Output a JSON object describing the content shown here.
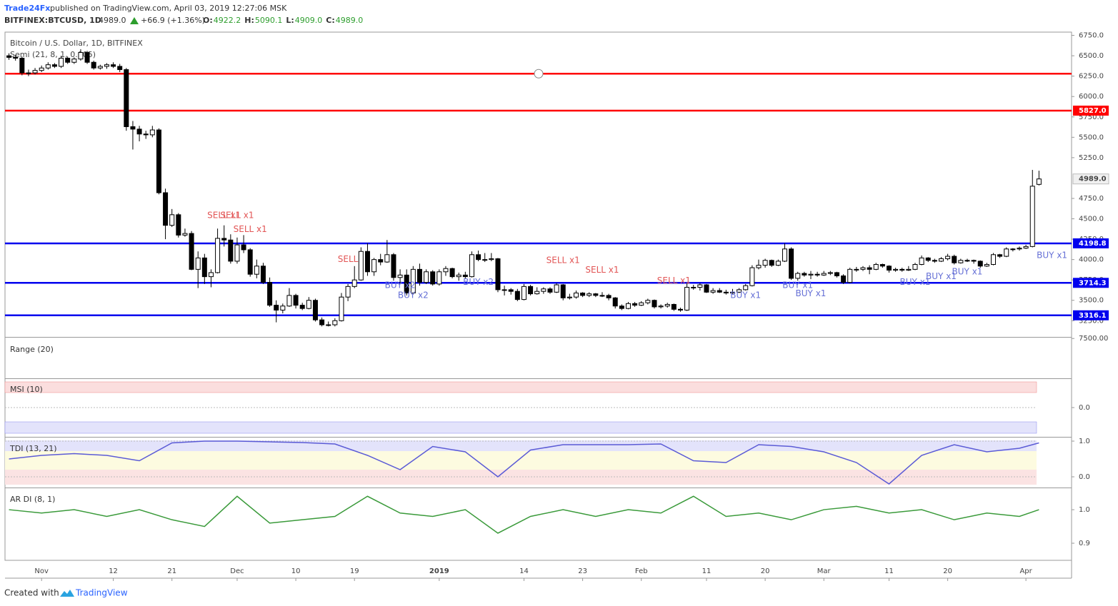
{
  "header": {
    "author": "Trade24Fx",
    "published": "published on TradingView.com, April 03, 2019 12:27:06 MSK",
    "symbol": "BITFINEX:BTCUSD, 1D",
    "last": "4989.0",
    "change": "+66.9 (+1.36%)",
    "ohlc": [
      {
        "label": "O:",
        "value": "4922.2"
      },
      {
        "label": "H:",
        "value": "5090.1"
      },
      {
        "label": "L:",
        "value": "4909.0"
      },
      {
        "label": "C:",
        "value": "4989.0"
      }
    ]
  },
  "footer": {
    "created": "Created with",
    "brand": "TradingView"
  },
  "chart_data": {
    "type": "candlestick",
    "title": "Bitcoin / U.S. Dollar, 1D, BITFINEX",
    "subtitle": "Semi (21, 8, 1, 0.005)",
    "up_color": "#ffffff",
    "down_color": "#000000",
    "xlim": [
      -0.5,
      163
    ],
    "ylim": [
      3060,
      6790
    ],
    "xticks": [
      {
        "value": 5,
        "label": "Nov"
      },
      {
        "value": 16,
        "label": "12"
      },
      {
        "value": 25,
        "label": "21"
      },
      {
        "value": 35,
        "label": "Dec"
      },
      {
        "value": 44,
        "label": "10"
      },
      {
        "value": 53,
        "label": "19"
      },
      {
        "value": 66,
        "label": "2019"
      },
      {
        "value": 79,
        "label": "14"
      },
      {
        "value": 88,
        "label": "23"
      },
      {
        "value": 97,
        "label": "Feb"
      },
      {
        "value": 107,
        "label": "11"
      },
      {
        "value": 116,
        "label": "20"
      },
      {
        "value": 125,
        "label": "Mar"
      },
      {
        "value": 135,
        "label": "11"
      },
      {
        "value": 144,
        "label": "20"
      },
      {
        "value": 156,
        "label": "Apr"
      }
    ],
    "yticks": [
      {
        "value": 3250,
        "label": "3250.0"
      },
      {
        "value": 3500,
        "label": "3500.0"
      },
      {
        "value": 3750,
        "label": "3750.0"
      },
      {
        "value": 4000,
        "label": "4000.0"
      },
      {
        "value": 4250,
        "label": "4250.0"
      },
      {
        "value": 4500,
        "label": "4500.0"
      },
      {
        "value": 4750,
        "label": "4750.0"
      },
      {
        "value": 5250,
        "label": "5250.0"
      },
      {
        "value": 5500,
        "label": "5500.0"
      },
      {
        "value": 5750,
        "label": "5750.0"
      },
      {
        "value": 6000,
        "label": "6000.0"
      },
      {
        "value": 6250,
        "label": "6250.0"
      },
      {
        "value": 6500,
        "label": "6500.0"
      },
      {
        "value": 6750,
        "label": "6750.0"
      }
    ],
    "candles": [
      [
        6500,
        6530,
        6450,
        6480
      ],
      [
        6480,
        6510,
        6440,
        6470
      ],
      [
        6470,
        6490,
        6260,
        6290
      ],
      [
        6290,
        6330,
        6250,
        6290
      ],
      [
        6290,
        6350,
        6270,
        6320
      ],
      [
        6320,
        6380,
        6300,
        6350
      ],
      [
        6350,
        6420,
        6330,
        6390
      ],
      [
        6390,
        6410,
        6350,
        6370
      ],
      [
        6370,
        6500,
        6350,
        6470
      ],
      [
        6470,
        6490,
        6400,
        6420
      ],
      [
        6420,
        6480,
        6400,
        6460
      ],
      [
        6460,
        6580,
        6440,
        6540
      ],
      [
        6540,
        6560,
        6400,
        6420
      ],
      [
        6420,
        6440,
        6330,
        6350
      ],
      [
        6350,
        6390,
        6330,
        6370
      ],
      [
        6370,
        6410,
        6340,
        6390
      ],
      [
        6390,
        6420,
        6350,
        6370
      ],
      [
        6370,
        6400,
        6300,
        6330
      ],
      [
        6330,
        6350,
        5580,
        5630
      ],
      [
        5630,
        5700,
        5350,
        5600
      ],
      [
        5600,
        5640,
        5450,
        5540
      ],
      [
        5540,
        5580,
        5480,
        5530
      ],
      [
        5530,
        5640,
        5500,
        5590
      ],
      [
        5590,
        5610,
        4800,
        4820
      ],
      [
        4820,
        4870,
        4250,
        4420
      ],
      [
        4420,
        4620,
        4400,
        4550
      ],
      [
        4550,
        4570,
        4270,
        4300
      ],
      [
        4300,
        4380,
        4280,
        4320
      ],
      [
        4320,
        4350,
        3870,
        3880
      ],
      [
        3880,
        4100,
        3650,
        4020
      ],
      [
        4020,
        4070,
        3700,
        3790
      ],
      [
        3790,
        3880,
        3660,
        3840
      ],
      [
        3840,
        4380,
        3830,
        4260
      ],
      [
        4260,
        4420,
        4160,
        4240
      ],
      [
        4240,
        4310,
        3950,
        3980
      ],
      [
        3980,
        4270,
        3950,
        4180
      ],
      [
        4180,
        4300,
        4080,
        4120
      ],
      [
        4120,
        4140,
        3790,
        3820
      ],
      [
        3820,
        4000,
        3770,
        3920
      ],
      [
        3920,
        3960,
        3700,
        3720
      ],
      [
        3720,
        3780,
        3420,
        3440
      ],
      [
        3440,
        3500,
        3230,
        3380
      ],
      [
        3380,
        3460,
        3340,
        3430
      ],
      [
        3430,
        3650,
        3420,
        3560
      ],
      [
        3560,
        3580,
        3400,
        3440
      ],
      [
        3440,
        3470,
        3380,
        3400
      ],
      [
        3400,
        3540,
        3390,
        3500
      ],
      [
        3500,
        3520,
        3240,
        3260
      ],
      [
        3260,
        3290,
        3180,
        3200
      ],
      [
        3200,
        3240,
        3180,
        3200
      ],
      [
        3200,
        3280,
        3180,
        3250
      ],
      [
        3250,
        3590,
        3240,
        3540
      ],
      [
        3540,
        3700,
        3490,
        3670
      ],
      [
        3670,
        3920,
        3650,
        3750
      ],
      [
        3750,
        4150,
        3740,
        4100
      ],
      [
        4100,
        4200,
        3800,
        3850
      ],
      [
        3850,
        4020,
        3800,
        4000
      ],
      [
        4000,
        4070,
        3930,
        3970
      ],
      [
        3970,
        4240,
        3960,
        4060
      ],
      [
        4060,
        4080,
        3740,
        3780
      ],
      [
        3780,
        3880,
        3700,
        3810
      ],
      [
        3810,
        3880,
        3560,
        3590
      ],
      [
        3590,
        3920,
        3570,
        3880
      ],
      [
        3880,
        3950,
        3680,
        3720
      ],
      [
        3720,
        3880,
        3700,
        3850
      ],
      [
        3850,
        3870,
        3680,
        3700
      ],
      [
        3700,
        3880,
        3680,
        3850
      ],
      [
        3850,
        3920,
        3800,
        3890
      ],
      [
        3890,
        3900,
        3770,
        3790
      ],
      [
        3790,
        3840,
        3740,
        3810
      ],
      [
        3810,
        3850,
        3760,
        3790
      ],
      [
        3790,
        4100,
        3780,
        4060
      ],
      [
        4060,
        4110,
        3980,
        4000
      ],
      [
        4000,
        4080,
        3970,
        4000
      ],
      [
        4000,
        4080,
        3980,
        4010
      ],
      [
        4010,
        4020,
        3600,
        3630
      ],
      [
        3630,
        3680,
        3560,
        3630
      ],
      [
        3630,
        3650,
        3570,
        3610
      ],
      [
        3610,
        3640,
        3490,
        3510
      ],
      [
        3510,
        3700,
        3500,
        3670
      ],
      [
        3670,
        3690,
        3560,
        3580
      ],
      [
        3580,
        3660,
        3570,
        3610
      ],
      [
        3610,
        3660,
        3580,
        3640
      ],
      [
        3640,
        3660,
        3580,
        3600
      ],
      [
        3600,
        3710,
        3590,
        3690
      ],
      [
        3690,
        3700,
        3500,
        3530
      ],
      [
        3530,
        3580,
        3510,
        3540
      ],
      [
        3540,
        3620,
        3520,
        3590
      ],
      [
        3590,
        3600,
        3540,
        3560
      ],
      [
        3560,
        3600,
        3540,
        3580
      ],
      [
        3580,
        3590,
        3540,
        3560
      ],
      [
        3560,
        3600,
        3540,
        3560
      ],
      [
        3560,
        3580,
        3500,
        3530
      ],
      [
        3530,
        3540,
        3400,
        3430
      ],
      [
        3430,
        3450,
        3380,
        3400
      ],
      [
        3400,
        3480,
        3390,
        3460
      ],
      [
        3460,
        3480,
        3420,
        3440
      ],
      [
        3440,
        3490,
        3430,
        3470
      ],
      [
        3470,
        3520,
        3450,
        3500
      ],
      [
        3500,
        3510,
        3400,
        3420
      ],
      [
        3420,
        3450,
        3400,
        3430
      ],
      [
        3430,
        3470,
        3410,
        3450
      ],
      [
        3450,
        3460,
        3370,
        3390
      ],
      [
        3390,
        3410,
        3360,
        3380
      ],
      [
        3380,
        3710,
        3370,
        3660
      ],
      [
        3660,
        3690,
        3630,
        3660
      ],
      [
        3660,
        3710,
        3620,
        3690
      ],
      [
        3690,
        3700,
        3590,
        3600
      ],
      [
        3600,
        3650,
        3580,
        3620
      ],
      [
        3620,
        3650,
        3590,
        3600
      ],
      [
        3600,
        3630,
        3570,
        3590
      ],
      [
        3590,
        3640,
        3580,
        3600
      ],
      [
        3600,
        3650,
        3590,
        3630
      ],
      [
        3630,
        3700,
        3620,
        3680
      ],
      [
        3680,
        3930,
        3670,
        3900
      ],
      [
        3900,
        4000,
        3880,
        3930
      ],
      [
        3930,
        4010,
        3900,
        3990
      ],
      [
        3990,
        4000,
        3910,
        3930
      ],
      [
        3930,
        4000,
        3920,
        3980
      ],
      [
        3980,
        4200,
        3970,
        4130
      ],
      [
        4130,
        4150,
        3750,
        3770
      ],
      [
        3770,
        3850,
        3740,
        3830
      ],
      [
        3830,
        3850,
        3790,
        3810
      ],
      [
        3810,
        3860,
        3760,
        3820
      ],
      [
        3820,
        3850,
        3790,
        3810
      ],
      [
        3810,
        3860,
        3800,
        3830
      ],
      [
        3830,
        3860,
        3810,
        3840
      ],
      [
        3840,
        3850,
        3780,
        3800
      ],
      [
        3800,
        3820,
        3700,
        3720
      ],
      [
        3720,
        3900,
        3710,
        3880
      ],
      [
        3880,
        3910,
        3850,
        3880
      ],
      [
        3880,
        3920,
        3860,
        3900
      ],
      [
        3900,
        3930,
        3820,
        3880
      ],
      [
        3880,
        3960,
        3870,
        3940
      ],
      [
        3940,
        3950,
        3900,
        3920
      ],
      [
        3920,
        3930,
        3840,
        3870
      ],
      [
        3870,
        3900,
        3850,
        3880
      ],
      [
        3880,
        3900,
        3850,
        3870
      ],
      [
        3870,
        3920,
        3860,
        3880
      ],
      [
        3880,
        3960,
        3870,
        3940
      ],
      [
        3940,
        4050,
        3930,
        4020
      ],
      [
        4020,
        4030,
        3970,
        3990
      ],
      [
        3990,
        4010,
        3960,
        3980
      ],
      [
        3980,
        4030,
        3970,
        4010
      ],
      [
        4010,
        4070,
        3990,
        4040
      ],
      [
        4040,
        4060,
        3940,
        3960
      ],
      [
        3960,
        4010,
        3950,
        3990
      ],
      [
        3990,
        4010,
        3970,
        3990
      ],
      [
        3990,
        4000,
        3950,
        3980
      ],
      [
        3980,
        3990,
        3900,
        3920
      ],
      [
        3920,
        3960,
        3910,
        3940
      ],
      [
        3940,
        4080,
        3930,
        4060
      ],
      [
        4060,
        4070,
        4020,
        4040
      ],
      [
        4040,
        4150,
        4030,
        4130
      ],
      [
        4130,
        4140,
        4100,
        4130
      ],
      [
        4130,
        4160,
        4110,
        4140
      ],
      [
        4140,
        4180,
        4130,
        4160
      ],
      [
        4160,
        5100,
        4150,
        4900
      ],
      [
        4922.2,
        5090.1,
        4909,
        4989
      ]
    ],
    "levels": [
      {
        "value": 6280,
        "color": "#ff0000"
      },
      {
        "value": 5827,
        "label": "5827.0",
        "color": "#ff0000"
      },
      {
        "value": 4198.8,
        "label": "4198.8",
        "color": "#0000ee"
      },
      {
        "value": 3714.3,
        "label": "3714.3",
        "color": "#0000ee"
      },
      {
        "value": 3316.1,
        "label": "3316.1",
        "color": "#0000ee"
      }
    ],
    "last_price": 4989,
    "annotations": [
      {
        "text": "SELL x1",
        "x": 33,
        "y": 4540,
        "color": "#e25555"
      },
      {
        "text": "SELL x1",
        "x": 35,
        "y": 4540,
        "color": "#e25555"
      },
      {
        "text": "SELL x1",
        "x": 37,
        "y": 4370,
        "color": "#e25555"
      },
      {
        "text": "SELL",
        "x": 52,
        "y": 4000,
        "color": "#e25555"
      },
      {
        "text": "SELL x1",
        "x": 85,
        "y": 3990,
        "color": "#e25555"
      },
      {
        "text": "SELL x1",
        "x": 91,
        "y": 3870,
        "color": "#e25555"
      },
      {
        "text": "SELL x1",
        "x": 102,
        "y": 3740,
        "color": "#e25555"
      },
      {
        "text": "BUY x2",
        "x": 60,
        "y": 3680,
        "color": "#6670d6"
      },
      {
        "text": "BUY x2",
        "x": 62,
        "y": 3560,
        "color": "#6670d6"
      },
      {
        "text": "BUY x2",
        "x": 72,
        "y": 3720,
        "color": "#6670d6"
      },
      {
        "text": "BUY x1",
        "x": 113,
        "y": 3560,
        "color": "#6670d6"
      },
      {
        "text": "BUY x1",
        "x": 121,
        "y": 3680,
        "color": "#6670d6"
      },
      {
        "text": "BUY x1",
        "x": 123,
        "y": 3580,
        "color": "#6670d6"
      },
      {
        "text": "BUY x1",
        "x": 139,
        "y": 3720,
        "color": "#6670d6"
      },
      {
        "text": "BUY x1",
        "x": 143,
        "y": 3790,
        "color": "#6670d6"
      },
      {
        "text": "BUY x1",
        "x": 147,
        "y": 3850,
        "color": "#6670d6"
      },
      {
        "text": "BUY x1",
        "x": 160,
        "y": 4050,
        "color": "#6670d6"
      }
    ],
    "range": {
      "label": "Range (20)",
      "ylim": [
        3000,
        7600
      ],
      "yticks": [
        {
          "value": 7500,
          "label": "7500.00"
        }
      ]
    },
    "msi": {
      "label": "MSI (10)",
      "ylim": [
        -1,
        1
      ],
      "yticks": [
        {
          "value": 0,
          "label": "0.0"
        }
      ]
    },
    "tdi": {
      "label": "TDI (13, 21)",
      "color": "#5b5bd6",
      "ylim": [
        -0.28,
        1.1
      ],
      "yticks": [
        {
          "value": 1,
          "label": "1.0"
        },
        {
          "value": 0,
          "label": "0.0"
        }
      ],
      "x": [
        0,
        5,
        10,
        15,
        20,
        25,
        30,
        35,
        40,
        45,
        50,
        55,
        60,
        65,
        70,
        75,
        80,
        85,
        90,
        95,
        100,
        105,
        110,
        115,
        120,
        125,
        130,
        135,
        140,
        145,
        150,
        155,
        158
      ],
      "values": [
        0.5,
        0.6,
        0.65,
        0.6,
        0.45,
        0.95,
        1.0,
        1.0,
        0.98,
        0.96,
        0.92,
        0.6,
        0.2,
        0.85,
        0.7,
        0.0,
        0.75,
        0.9,
        0.9,
        0.9,
        0.92,
        0.45,
        0.4,
        0.9,
        0.85,
        0.7,
        0.4,
        -0.2,
        0.6,
        0.9,
        0.7,
        0.8,
        0.95
      ]
    },
    "ardi": {
      "label": "AR DI (8, 1)",
      "color": "#3a9a3a",
      "ylim": [
        0.849,
        1.064
      ],
      "yticks": [
        {
          "value": 1,
          "label": "1.0"
        },
        {
          "value": 0.9,
          "label": "0.9"
        }
      ],
      "x": [
        0,
        5,
        10,
        15,
        20,
        25,
        30,
        35,
        40,
        45,
        50,
        55,
        60,
        65,
        70,
        75,
        80,
        85,
        90,
        95,
        100,
        105,
        110,
        115,
        120,
        125,
        130,
        135,
        140,
        145,
        150,
        155,
        158
      ],
      "values": [
        1.0,
        0.99,
        1.0,
        0.98,
        1.0,
        0.97,
        0.95,
        1.04,
        0.96,
        0.97,
        0.98,
        1.04,
        0.99,
        0.98,
        1.0,
        0.93,
        0.98,
        1.0,
        0.98,
        1.0,
        0.99,
        1.04,
        0.98,
        0.99,
        0.97,
        1.0,
        1.01,
        0.99,
        1.0,
        0.97,
        0.99,
        0.98,
        1.0
      ]
    }
  }
}
